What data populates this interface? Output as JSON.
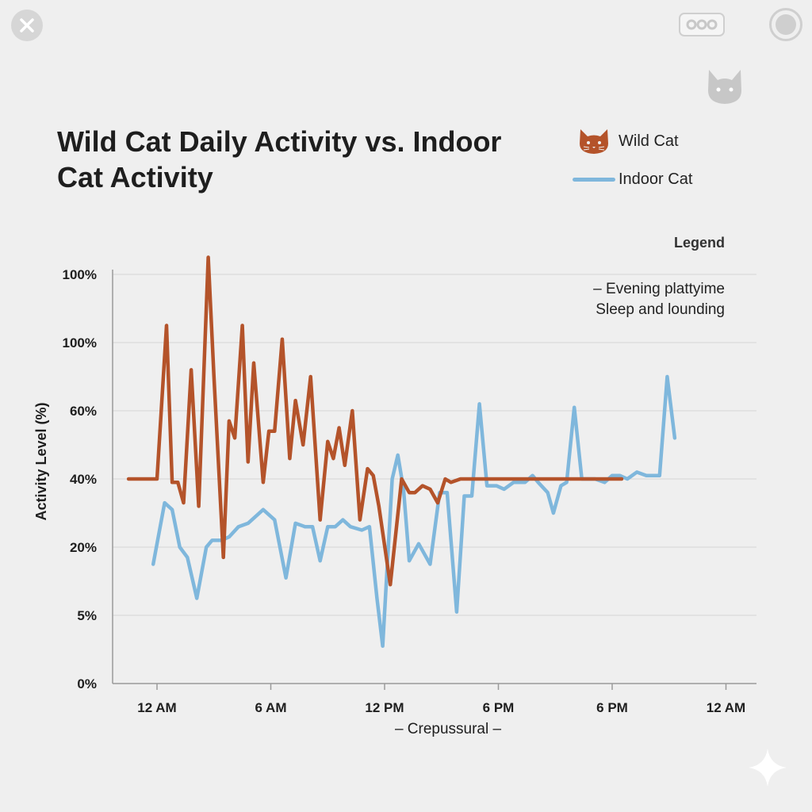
{
  "toolbar": {
    "close_icon": "close-icon",
    "tool_icon": "settings-toggle-icon",
    "record_icon": "record-icon",
    "badge_icon": "cat-icon"
  },
  "colors": {
    "wild": "#b4532a",
    "indoor": "#7fb7dc",
    "grid": "#d4d4d4",
    "axis": "#9a9a9a",
    "text": "#1e1e1e"
  },
  "legend": {
    "heading": "Legend",
    "notes": [
      "– Evening plattyime",
      "Sleep and lounding"
    ]
  },
  "chart_data": {
    "type": "line",
    "title": "Wild Cat Daily Activity vs. Indoor Cat Activity",
    "ylabel": "Activity Level (%)",
    "xlabel": "– Crepussural –",
    "y_tick_labels": [
      "0%",
      "5%",
      "20%",
      "40%",
      "60%",
      "100%",
      "100%"
    ],
    "x_tick_labels": [
      "12 AM",
      "6 AM",
      "12 PM",
      "6 PM",
      "6 PM",
      "12 AM"
    ],
    "ylim": [
      0,
      120
    ],
    "grid": true,
    "legend_position": "top-right",
    "series": [
      {
        "name": "Wild Cat",
        "color": "#b4532a",
        "icon": "cat-face-icon",
        "points": [
          [
            -1.5,
            60
          ],
          [
            0.0,
            60
          ],
          [
            0.5,
            105
          ],
          [
            0.8,
            59
          ],
          [
            1.1,
            59
          ],
          [
            1.4,
            53
          ],
          [
            1.8,
            92
          ],
          [
            2.2,
            52
          ],
          [
            2.7,
            125
          ],
          [
            3.0,
            90
          ],
          [
            3.5,
            37
          ],
          [
            3.8,
            77
          ],
          [
            4.1,
            72
          ],
          [
            4.5,
            105
          ],
          [
            4.8,
            65
          ],
          [
            5.1,
            94
          ],
          [
            5.6,
            59
          ],
          [
            5.9,
            74
          ],
          [
            6.2,
            74
          ],
          [
            6.6,
            101
          ],
          [
            7.0,
            66
          ],
          [
            7.3,
            83
          ],
          [
            7.7,
            70
          ],
          [
            8.1,
            90
          ],
          [
            8.6,
            48
          ],
          [
            9.0,
            71
          ],
          [
            9.3,
            66
          ],
          [
            9.6,
            75
          ],
          [
            9.9,
            64
          ],
          [
            10.3,
            80
          ],
          [
            10.7,
            48
          ],
          [
            11.1,
            63
          ],
          [
            11.4,
            61
          ],
          [
            11.7,
            52
          ],
          [
            12.3,
            29
          ],
          [
            12.9,
            60
          ],
          [
            13.3,
            56
          ],
          [
            13.6,
            56
          ],
          [
            14.0,
            58
          ],
          [
            14.4,
            57
          ],
          [
            14.8,
            53
          ],
          [
            15.2,
            60
          ],
          [
            15.5,
            59
          ],
          [
            16.0,
            60
          ],
          [
            24.5,
            60
          ]
        ]
      },
      {
        "name": "Indoor Cat",
        "color": "#7fb7dc",
        "icon": "line-swatch-icon",
        "points": [
          [
            -0.2,
            35
          ],
          [
            0.4,
            53
          ],
          [
            0.8,
            51
          ],
          [
            1.2,
            40
          ],
          [
            1.6,
            37
          ],
          [
            2.1,
            25
          ],
          [
            2.6,
            40
          ],
          [
            2.9,
            42
          ],
          [
            3.4,
            42
          ],
          [
            3.8,
            43
          ],
          [
            4.3,
            46
          ],
          [
            4.8,
            47
          ],
          [
            5.6,
            51
          ],
          [
            6.2,
            48
          ],
          [
            6.8,
            31
          ],
          [
            7.3,
            47
          ],
          [
            7.8,
            46
          ],
          [
            8.2,
            46
          ],
          [
            8.6,
            36
          ],
          [
            9.0,
            46
          ],
          [
            9.4,
            46
          ],
          [
            9.8,
            48
          ],
          [
            10.2,
            46
          ],
          [
            10.8,
            45
          ],
          [
            11.2,
            46
          ],
          [
            11.6,
            25
          ],
          [
            11.9,
            11
          ],
          [
            12.4,
            60
          ],
          [
            12.7,
            67
          ],
          [
            13.0,
            57
          ],
          [
            13.3,
            36
          ],
          [
            13.8,
            41
          ],
          [
            14.4,
            35
          ],
          [
            14.9,
            56
          ],
          [
            15.3,
            56
          ],
          [
            15.8,
            21
          ],
          [
            16.2,
            55
          ],
          [
            16.6,
            55
          ],
          [
            17.0,
            82
          ],
          [
            17.4,
            58
          ],
          [
            17.9,
            58
          ],
          [
            18.3,
            57
          ],
          [
            18.8,
            59
          ],
          [
            19.4,
            59
          ],
          [
            19.8,
            61
          ],
          [
            20.1,
            59
          ],
          [
            20.6,
            56
          ],
          [
            20.9,
            50
          ],
          [
            21.3,
            58
          ],
          [
            21.6,
            59
          ],
          [
            22.0,
            81
          ],
          [
            22.4,
            60
          ],
          [
            22.8,
            60
          ],
          [
            23.1,
            60
          ],
          [
            23.6,
            59
          ],
          [
            24.0,
            61
          ],
          [
            24.4,
            61
          ],
          [
            24.8,
            60
          ],
          [
            25.3,
            62
          ],
          [
            25.8,
            61
          ],
          [
            26.2,
            61
          ],
          [
            26.5,
            61
          ],
          [
            26.9,
            90
          ],
          [
            27.3,
            72
          ]
        ]
      }
    ]
  }
}
